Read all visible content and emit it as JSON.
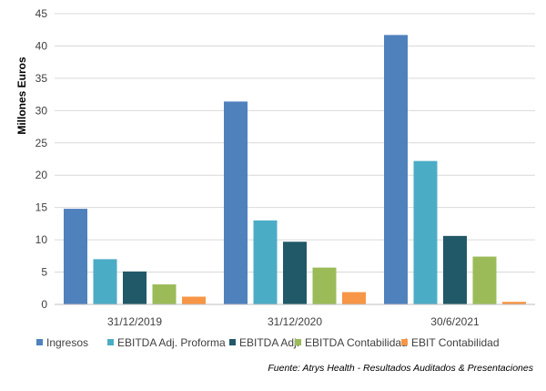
{
  "chart_data": {
    "type": "bar",
    "categories": [
      "31/12/2019",
      "31/12/2020",
      "30/6/2021"
    ],
    "series": [
      {
        "name": "Ingresos",
        "color": "#4F81BD",
        "values": [
          14.8,
          31.4,
          41.7
        ]
      },
      {
        "name": "EBITDA Adj. Proforma",
        "color": "#4BACC6",
        "values": [
          7.0,
          13.0,
          22.2
        ]
      },
      {
        "name": "EBITDA Adj.",
        "color": "#215968",
        "values": [
          5.1,
          9.7,
          10.6
        ]
      },
      {
        "name": "EBITDA Contabilidad",
        "color": "#9BBB59",
        "values": [
          3.1,
          5.7,
          7.4
        ]
      },
      {
        "name": "EBIT Contabilidad",
        "color": "#F79646",
        "values": [
          1.2,
          1.9,
          0.4
        ]
      }
    ],
    "ylabel": "Millones Euros",
    "xlabel": "",
    "ylim": [
      0,
      45
    ],
    "yticks": [
      0,
      5,
      10,
      15,
      20,
      25,
      30,
      35,
      40,
      45
    ],
    "grid": true,
    "legend": "bottom",
    "source": "Fuente: Atrys Health - Resultados Auditados & Presentaciones"
  }
}
